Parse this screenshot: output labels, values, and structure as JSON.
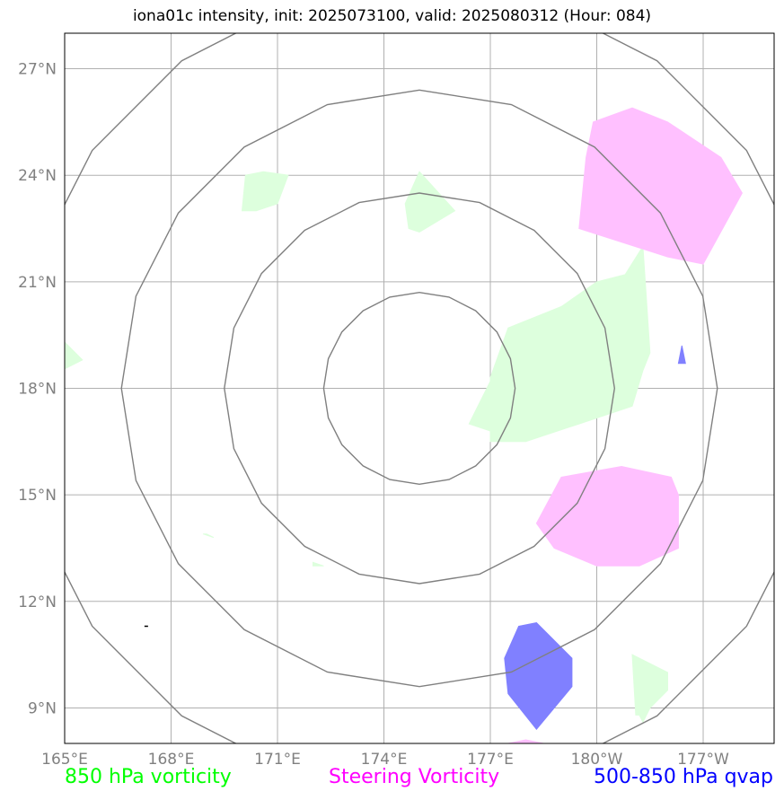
{
  "title": "iona01c intensity, init: 2025073100, valid: 2025080312 (Hour: 084)",
  "map": {
    "lon_range": [
      165,
      185
    ],
    "lat_range": [
      8,
      28
    ],
    "lon_ticks": [
      {
        "lon": 165,
        "label": "165°E"
      },
      {
        "lon": 168,
        "label": "168°E"
      },
      {
        "lon": 171,
        "label": "171°E"
      },
      {
        "lon": 174,
        "label": "174°E"
      },
      {
        "lon": 177,
        "label": "177°E"
      },
      {
        "lon": 180,
        "label": "180°W"
      },
      {
        "lon": 183,
        "label": "177°W"
      }
    ],
    "lat_ticks": [
      {
        "lat": 9,
        "label": "9°N"
      },
      {
        "lat": 12,
        "label": "12°N"
      },
      {
        "lat": 15,
        "label": "15°N"
      },
      {
        "lat": 18,
        "label": "18°N"
      },
      {
        "lat": 21,
        "label": "21°N"
      },
      {
        "lat": 24,
        "label": "24°N"
      },
      {
        "lat": 27,
        "label": "27°N"
      }
    ],
    "storm_center": {
      "lon": 175,
      "lat": 18
    },
    "range_rings_deg": [
      2.7,
      5.5,
      8.4,
      11.4
    ],
    "colors": {
      "vort850": "#ddffdd",
      "steering": "#ffc0ff",
      "qvap": "#8080ff",
      "rings": "#808080",
      "grid": "#b0b0b0"
    },
    "shapes": {
      "vort850": [
        [
          [
            181.3,
            22.0
          ],
          [
            181.5,
            19.0
          ],
          [
            181.3,
            18.5
          ],
          [
            181.0,
            17.5
          ],
          [
            179.5,
            17.0
          ],
          [
            178.0,
            16.5
          ],
          [
            177.0,
            16.5
          ],
          [
            177.0,
            16.8
          ],
          [
            176.4,
            17.0
          ],
          [
            177.0,
            18.2
          ],
          [
            177.0,
            18.3
          ],
          [
            177.5,
            19.7
          ],
          [
            179.0,
            20.3
          ],
          [
            180.0,
            21.0
          ],
          [
            180.8,
            21.2
          ],
          [
            181.3,
            22.0
          ]
        ],
        [
          [
            170.6,
            24.1
          ],
          [
            171.3,
            24.0
          ],
          [
            171.0,
            23.2
          ],
          [
            170.4,
            23.0
          ],
          [
            170.0,
            23.0
          ],
          [
            170.1,
            24.0
          ],
          [
            170.6,
            24.1
          ]
        ],
        [
          [
            175.0,
            24.1
          ],
          [
            176.0,
            23.0
          ],
          [
            175.0,
            22.4
          ],
          [
            174.7,
            22.5
          ],
          [
            174.6,
            23.2
          ],
          [
            175.0,
            24.1
          ]
        ],
        [
          [
            164.9,
            19.4
          ],
          [
            165.5,
            18.8
          ],
          [
            164.9,
            18.5
          ],
          [
            164.9,
            19.4
          ]
        ],
        [
          [
            181.0,
            10.5
          ],
          [
            181.1,
            8.8
          ],
          [
            181.2,
            8.8
          ],
          [
            181.3,
            8.6
          ],
          [
            181.5,
            9.0
          ],
          [
            182.0,
            9.5
          ],
          [
            182.0,
            10.0
          ],
          [
            181.0,
            10.5
          ]
        ],
        [
          [
            169.0,
            13.9
          ],
          [
            169.2,
            13.8
          ],
          [
            168.9,
            13.9
          ],
          [
            169.0,
            13.9
          ]
        ],
        [
          [
            172.0,
            13.1
          ],
          [
            172.3,
            13.0
          ],
          [
            172.0,
            13.0
          ],
          [
            172.0,
            13.1
          ]
        ]
      ],
      "steering": [
        [
          [
            179.5,
            22.5
          ],
          [
            182.0,
            21.7
          ],
          [
            183.0,
            21.5
          ],
          [
            184.1,
            23.5
          ],
          [
            183.5,
            24.5
          ],
          [
            182.0,
            25.5
          ],
          [
            181.0,
            25.9
          ],
          [
            179.9,
            25.5
          ],
          [
            179.7,
            24.5
          ],
          [
            179.5,
            22.5
          ]
        ],
        [
          [
            178.3,
            14.2
          ],
          [
            178.8,
            13.5
          ],
          [
            180.0,
            13.0
          ],
          [
            181.2,
            13.0
          ],
          [
            182.3,
            13.5
          ],
          [
            182.3,
            15.0
          ],
          [
            182.1,
            15.5
          ],
          [
            180.7,
            15.8
          ],
          [
            179.0,
            15.5
          ],
          [
            178.3,
            14.2
          ]
        ],
        [
          [
            177.5,
            8.0
          ],
          [
            178.5,
            8.0
          ],
          [
            178.0,
            8.1
          ],
          [
            177.5,
            8.0
          ]
        ]
      ],
      "qvap": [
        [
          [
            177.8,
            11.3
          ],
          [
            178.3,
            11.4
          ],
          [
            179.3,
            10.4
          ],
          [
            179.3,
            9.6
          ],
          [
            178.3,
            8.4
          ],
          [
            177.5,
            9.4
          ],
          [
            177.4,
            10.4
          ],
          [
            177.8,
            11.3
          ]
        ],
        [
          [
            182.4,
            19.2
          ],
          [
            182.5,
            18.7
          ],
          [
            182.3,
            18.7
          ],
          [
            182.4,
            19.2
          ]
        ]
      ],
      "center_mark": [
        [
          167.3,
          11.3
        ]
      ]
    }
  },
  "legend": {
    "vort850": "850 hPa vorticity",
    "steering": "Steering Vorticity",
    "qvap": "500-850 hPa qvap"
  }
}
